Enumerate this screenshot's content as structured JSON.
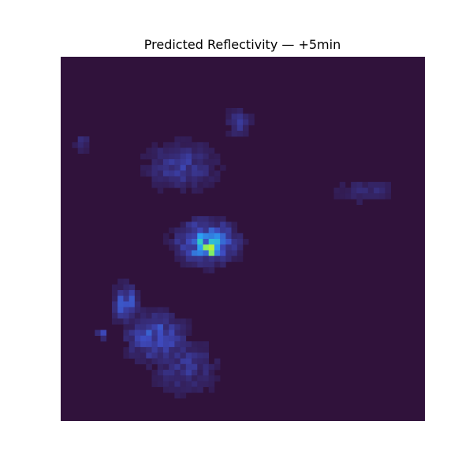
{
  "chart_data": {
    "type": "heatmap",
    "title": "Predicted Reflectivity — +5min",
    "xlabel": "",
    "ylabel": "",
    "axes_visible": false,
    "colormap": "turbo",
    "colors": {
      "background": "#30123b",
      "low": "#3e4bc0",
      "mid": "#2b9ef3",
      "high": "#35e9a6",
      "peak": "#b6f03a"
    },
    "grid_size": [
      64,
      64
    ],
    "echo_regions": [
      {
        "name": "northwest-band",
        "cx": 0.33,
        "cy": 0.3,
        "rx": 0.09,
        "ry": 0.06,
        "intensity": 0.22
      },
      {
        "name": "north-fragment",
        "cx": 0.49,
        "cy": 0.18,
        "rx": 0.03,
        "ry": 0.04,
        "intensity": 0.18
      },
      {
        "name": "west-fragment",
        "cx": 0.06,
        "cy": 0.24,
        "rx": 0.02,
        "ry": 0.03,
        "intensity": 0.15
      },
      {
        "name": "central-core",
        "cx": 0.4,
        "cy": 0.51,
        "rx": 0.07,
        "ry": 0.05,
        "intensity": 0.55
      },
      {
        "name": "central-peak",
        "cx": 0.41,
        "cy": 0.53,
        "rx": 0.025,
        "ry": 0.02,
        "intensity": 0.95
      },
      {
        "name": "east-band",
        "cx": 0.84,
        "cy": 0.37,
        "rx": 0.08,
        "ry": 0.03,
        "intensity": 0.14
      },
      {
        "name": "southwest-cells",
        "cx": 0.26,
        "cy": 0.77,
        "rx": 0.07,
        "ry": 0.06,
        "intensity": 0.35
      },
      {
        "name": "southwest-arc",
        "cx": 0.18,
        "cy": 0.68,
        "rx": 0.03,
        "ry": 0.05,
        "intensity": 0.38
      },
      {
        "name": "south-spread",
        "cx": 0.34,
        "cy": 0.85,
        "rx": 0.08,
        "ry": 0.07,
        "intensity": 0.2
      },
      {
        "name": "far-west-cell",
        "cx": 0.11,
        "cy": 0.76,
        "rx": 0.012,
        "ry": 0.012,
        "intensity": 0.4
      }
    ]
  }
}
